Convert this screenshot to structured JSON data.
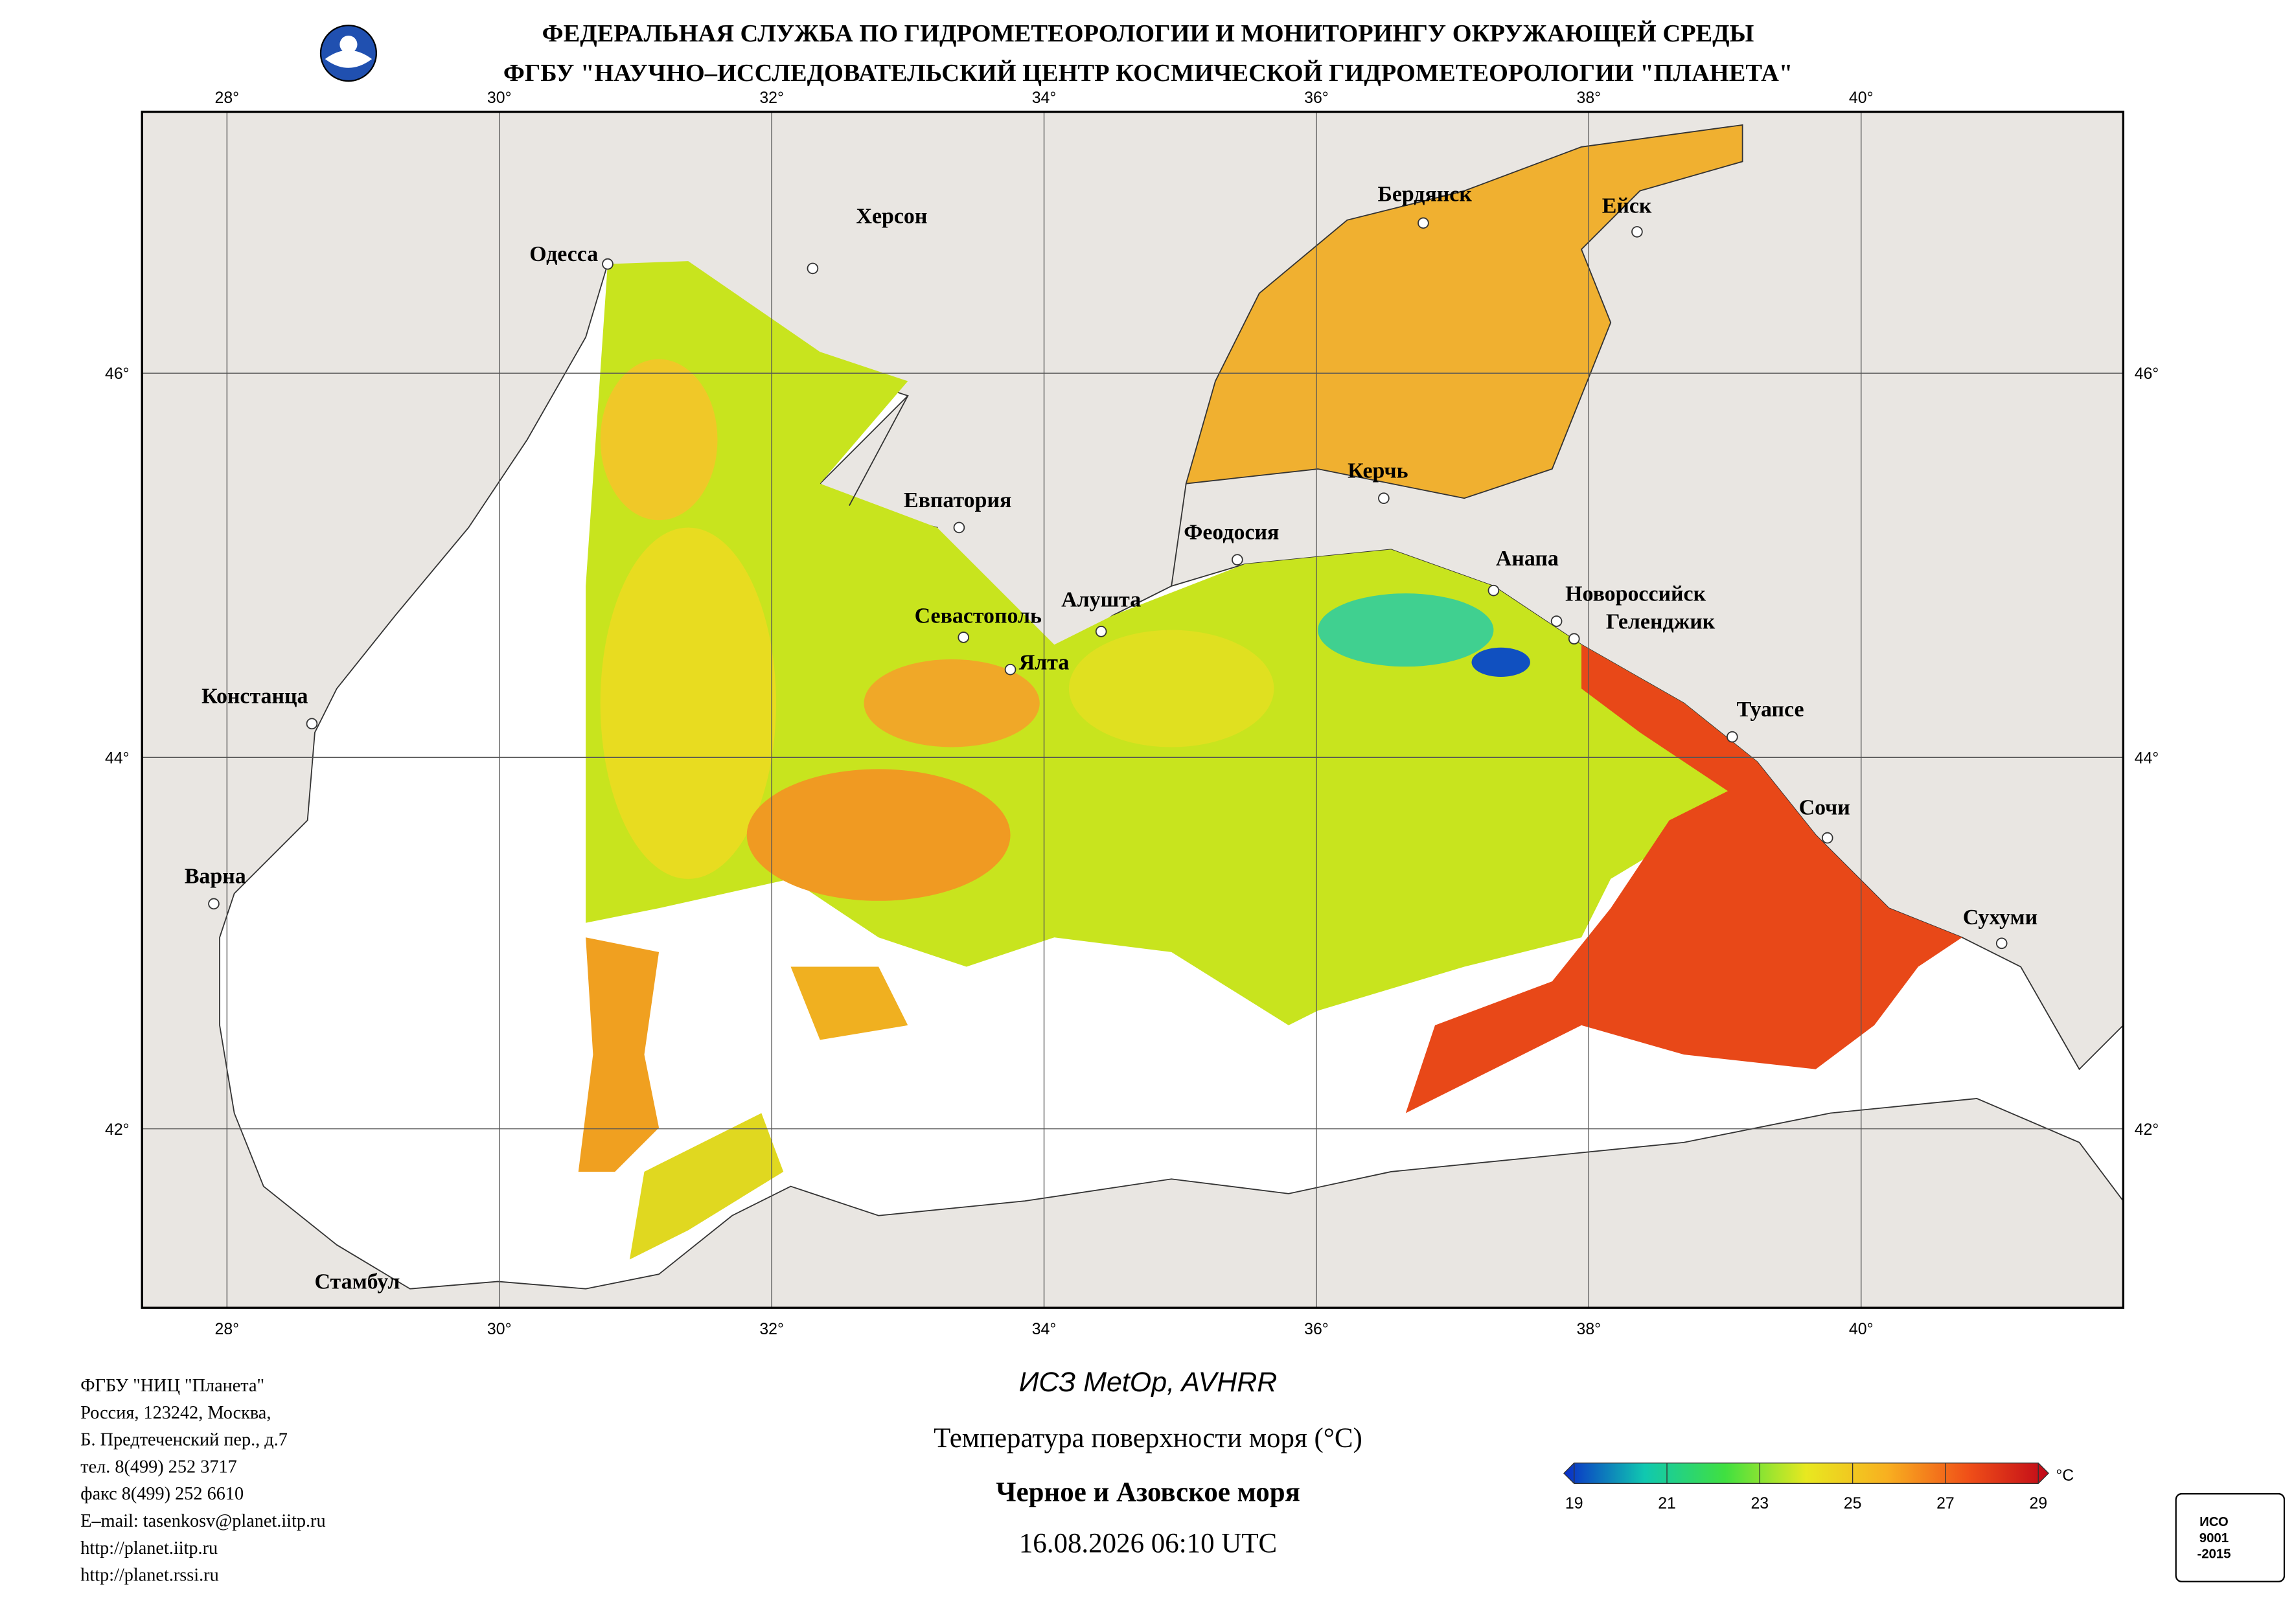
{
  "header": {
    "line1": "ФЕДЕРАЛЬНАЯ СЛУЖБА ПО ГИДРОМЕТЕОРОЛОГИИ И МОНИТОРИНГУ ОКРУЖАЮЩЕЙ СРЕДЫ",
    "line2": "ФГБУ \"НАУЧНО–ИССЛЕДОВАТЕЛЬСКИЙ ЦЕНТР КОСМИЧЕСКОЙ ГИДРОМЕТЕОРОЛОГИИ \"ПЛАНЕТА\""
  },
  "grid": {
    "lon": [
      {
        "value": 28,
        "label": "28°"
      },
      {
        "value": 30,
        "label": "30°"
      },
      {
        "value": 32,
        "label": "32°"
      },
      {
        "value": 34,
        "label": "34°"
      },
      {
        "value": 36,
        "label": "36°"
      },
      {
        "value": 38,
        "label": "38°"
      },
      {
        "value": 40,
        "label": "40°"
      }
    ],
    "lat": [
      {
        "value": 46,
        "label": "46°"
      },
      {
        "value": 44,
        "label": "44°"
      },
      {
        "value": 42,
        "label": "42°"
      }
    ]
  },
  "cities": [
    "Одесса",
    "Херсон",
    "Бердянск",
    "Ейск",
    "Керчь",
    "Евпатория",
    "Феодосия",
    "Анапа",
    "Новороссийск",
    "Геленджик",
    "Алушта",
    "Севастополь",
    "Ялта",
    "Туапсе",
    "Сочи",
    "Сухуми",
    "Констанца",
    "Варна",
    "Стамбул"
  ],
  "footer": [
    "ФГБУ \"НИЦ \"Планета\"",
    "Россия, 123242, Москва,",
    "Б. Предтеченский пер., д.7",
    "тел. 8(499) 252 3717",
    "факс 8(499) 252 6610",
    "E–mail: tasenkosv@planet.iitp.ru",
    "http://planet.iitp.ru",
    "http://planet.rssi.ru"
  ],
  "caption": {
    "satellite": "ИСЗ MetOp, AVHRR",
    "product": "Температура поверхности моря (°C)",
    "region": "Черное и Азовское моря",
    "datetime": "16.08.2026 06:10 UTC"
  },
  "colorbar": {
    "ticks": [
      19,
      21,
      23,
      25,
      27,
      29
    ],
    "unit": "°C",
    "colors": [
      "#0a2cc8",
      "#10c8b0",
      "#40e040",
      "#e8e820",
      "#f8b020",
      "#f05018",
      "#c00818"
    ]
  },
  "iso": {
    "lines": [
      "ИСО",
      "9001",
      "-2015"
    ]
  }
}
